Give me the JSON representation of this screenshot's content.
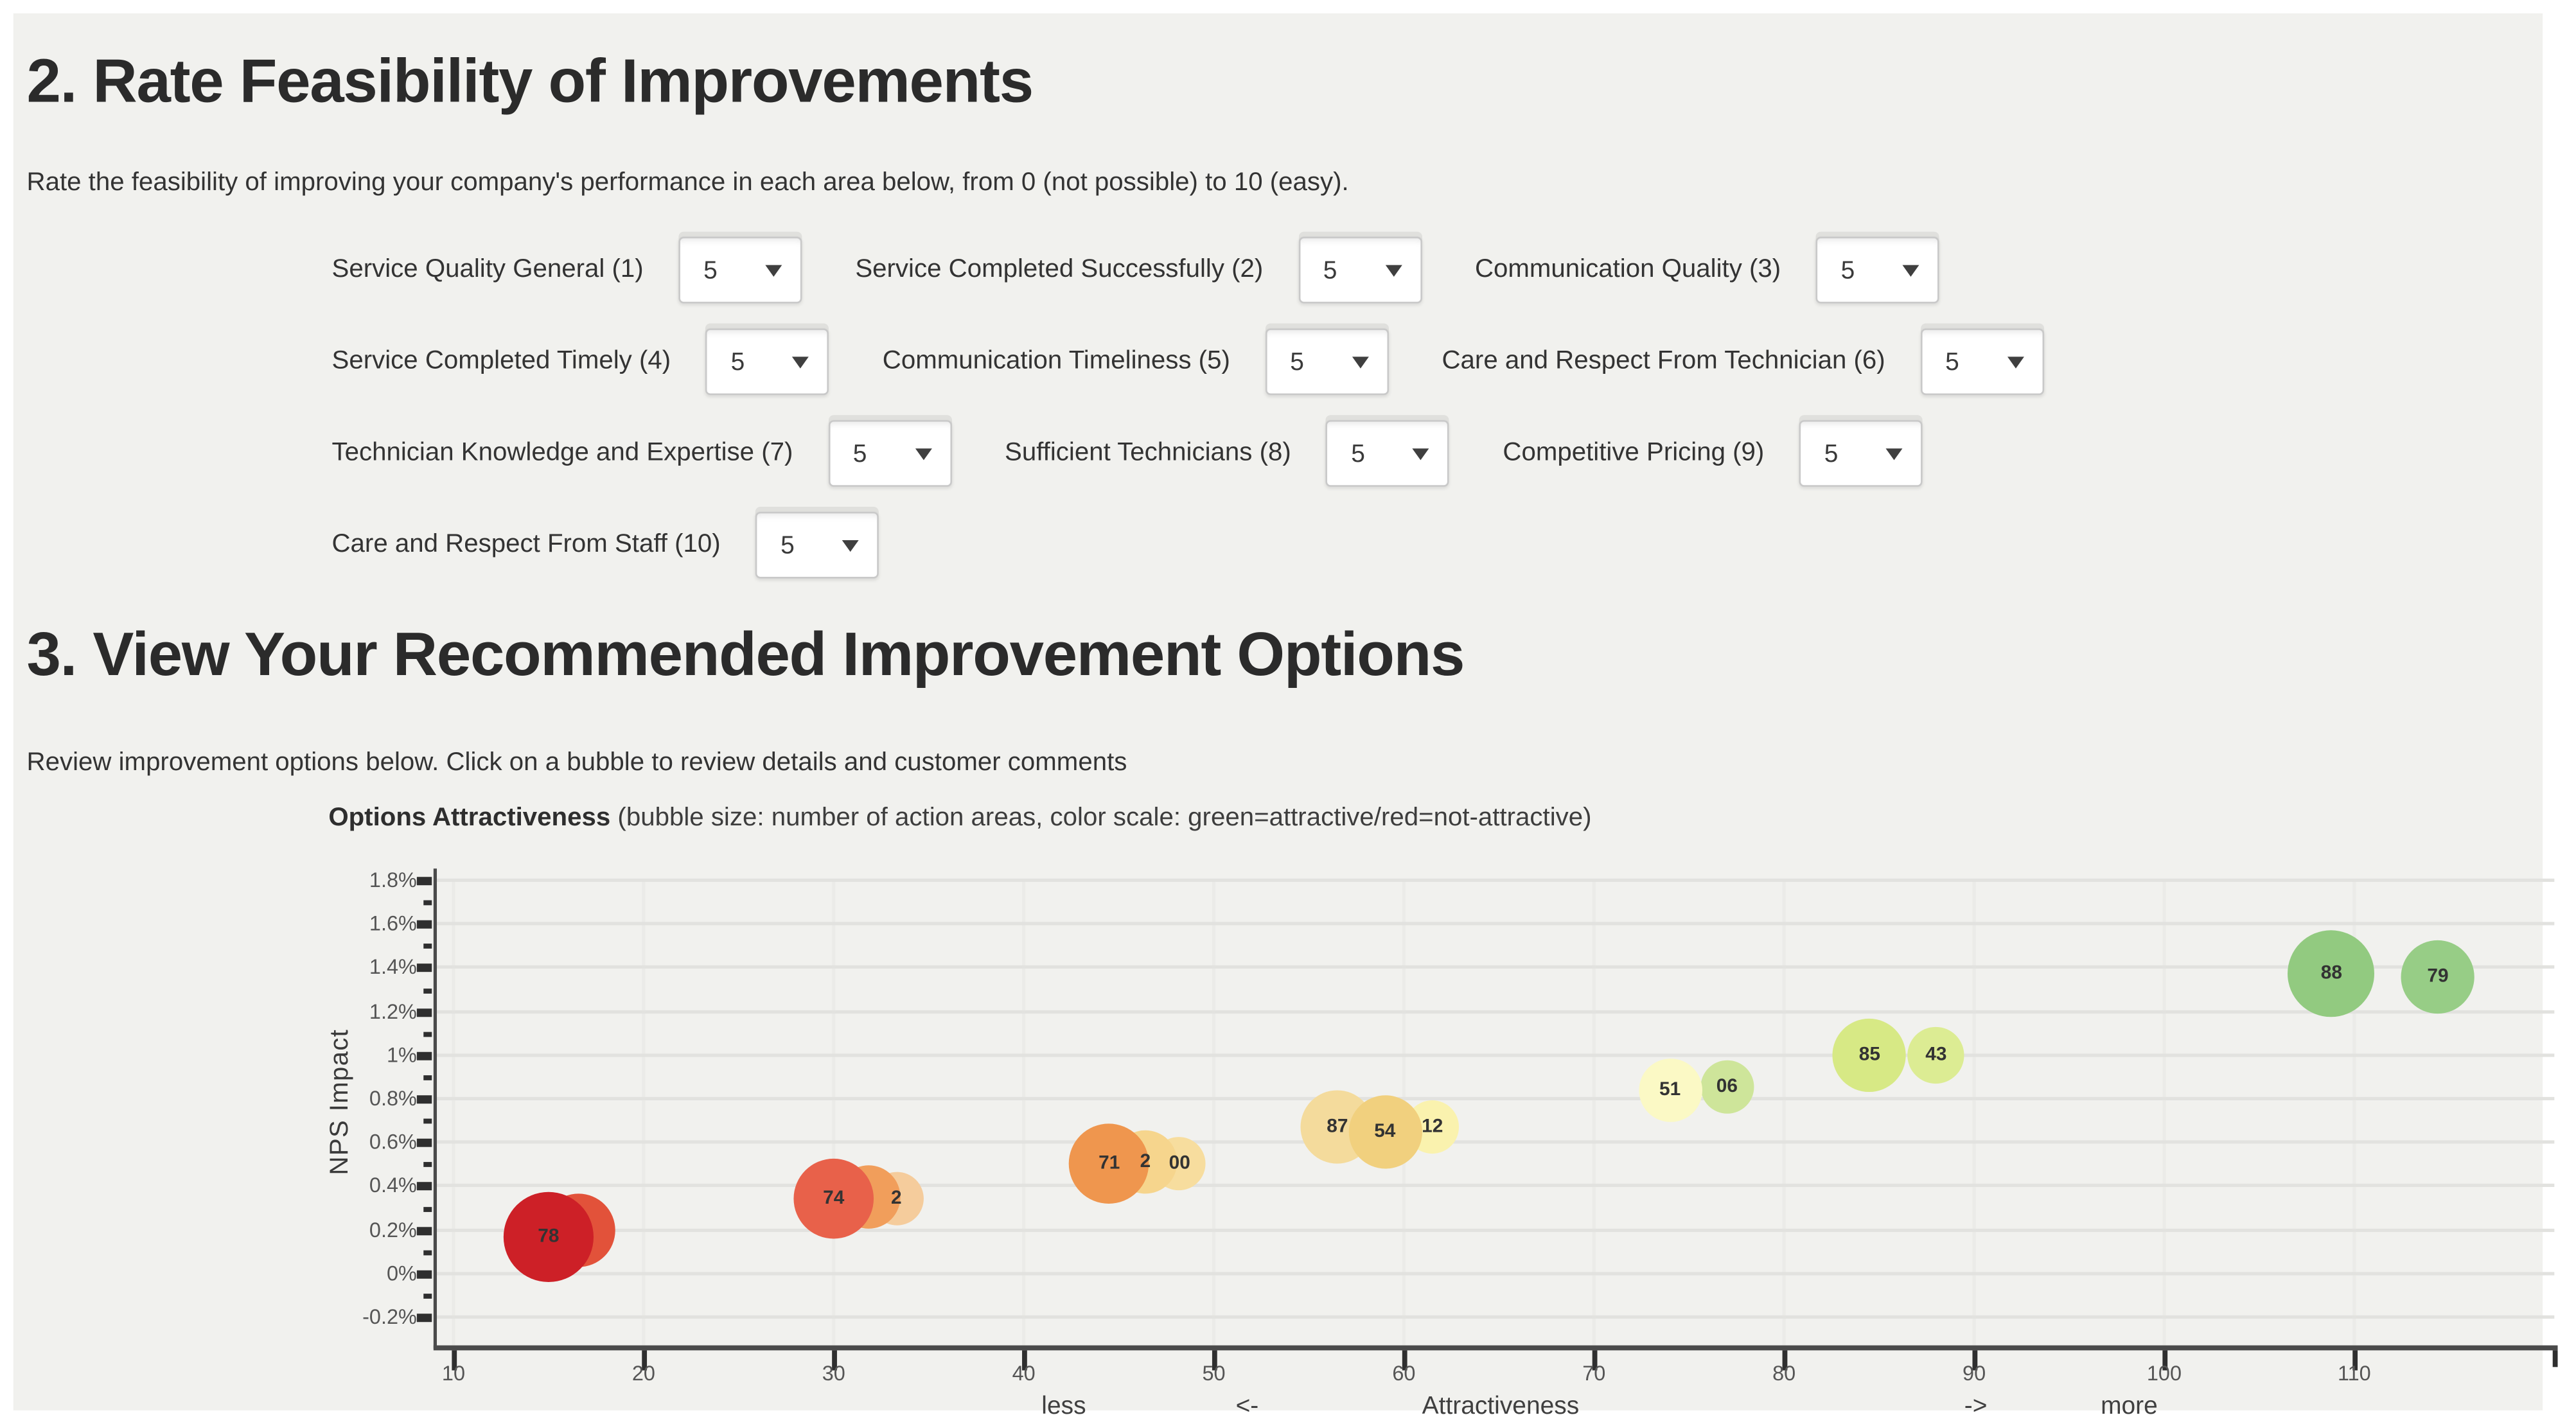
{
  "section2": {
    "heading": "2. Rate Feasibility of Improvements",
    "description": "Rate the feasibility of improving your company's performance in each area below, from 0 (not possible) to 10 (easy).",
    "rows": [
      [
        {
          "label": "Service Quality General (1)",
          "value": "5"
        },
        {
          "label": "Service Completed Successfully (2)",
          "value": "5"
        },
        {
          "label": "Communication Quality (3)",
          "value": "5"
        }
      ],
      [
        {
          "label": "Service Completed Timely (4)",
          "value": "5"
        },
        {
          "label": "Communication Timeliness (5)",
          "value": "5"
        },
        {
          "label": "Care and Respect From Technician (6)",
          "value": "5"
        }
      ],
      [
        {
          "label": "Technician Knowledge and Expertise (7)",
          "value": "5"
        },
        {
          "label": "Sufficient Technicians (8)",
          "value": "5"
        },
        {
          "label": "Competitive Pricing (9)",
          "value": "5"
        }
      ],
      [
        {
          "label": "Care and Respect From Staff (10)",
          "value": "5"
        }
      ]
    ]
  },
  "section3": {
    "heading": "3. View Your Recommended Improvement Options",
    "description": "Review improvement options below. Click on a bubble to review details and customer comments"
  },
  "chart_data": {
    "type": "scatter",
    "title": "Options Attractiveness",
    "subtitle": "(bubble size: number of action areas, color scale: green=attractive/red=not-attractive)",
    "ylabel": "NPS Impact",
    "xlabel_parts": [
      "less",
      "<-",
      "Attractiveness",
      "->",
      "more"
    ],
    "x_ticks": [
      10,
      20,
      30,
      40,
      50,
      60,
      70,
      80,
      90,
      100,
      110
    ],
    "y_ticks": [
      {
        "v": 1.8,
        "label": "1.8%"
      },
      {
        "v": 1.6,
        "label": "1.6%"
      },
      {
        "v": 1.4,
        "label": "1.4%"
      },
      {
        "v": 1.2,
        "label": "1.2%"
      },
      {
        "v": 1.0,
        "label": "1%"
      },
      {
        "v": 0.8,
        "label": "0.8%"
      },
      {
        "v": 0.6,
        "label": "0.6%"
      },
      {
        "v": 0.4,
        "label": "0.4%"
      },
      {
        "v": 0.2,
        "label": "0.2%"
      },
      {
        "v": 0.0,
        "label": "0%"
      },
      {
        "v": -0.2,
        "label": "-0.2%"
      }
    ],
    "xlim": [
      9,
      120.5
    ],
    "ylim": [
      -0.35,
      1.85
    ],
    "grid": true,
    "legend_position": "none",
    "bubbles": [
      {
        "label": "",
        "x": 16.6,
        "y": 0.2,
        "r": 22,
        "color": "#e2523a"
      },
      {
        "label": "78",
        "x": 15.0,
        "y": 0.17,
        "r": 27,
        "color": "#cd2027"
      },
      {
        "label": "2",
        "x": 33.3,
        "y": 0.34,
        "r": 16,
        "color": "#f5cc9c"
      },
      {
        "label": "",
        "x": 31.8,
        "y": 0.35,
        "r": 19,
        "color": "#f19e5b"
      },
      {
        "label": "74",
        "x": 30.0,
        "y": 0.34,
        "r": 24,
        "color": "#e8614a"
      },
      {
        "label": "00",
        "x": 48.2,
        "y": 0.5,
        "r": 16,
        "color": "#f7dd9e"
      },
      {
        "label": "2",
        "x": 46.4,
        "y": 0.51,
        "r": 19,
        "color": "#f6d58d"
      },
      {
        "label": "71",
        "x": 44.5,
        "y": 0.5,
        "r": 24,
        "color": "#ef964e"
      },
      {
        "label": "87",
        "x": 56.5,
        "y": 0.67,
        "r": 22,
        "color": "#f4db9c"
      },
      {
        "label": "12",
        "x": 61.5,
        "y": 0.67,
        "r": 16,
        "color": "#faf2ae"
      },
      {
        "label": "54",
        "x": 59.0,
        "y": 0.65,
        "r": 22,
        "color": "#f1d07e"
      },
      {
        "label": "06",
        "x": 77.0,
        "y": 0.85,
        "r": 16,
        "color": "#cee59a"
      },
      {
        "label": "51",
        "x": 74.0,
        "y": 0.84,
        "r": 19,
        "color": "#fbf9c5"
      },
      {
        "label": "43",
        "x": 88.0,
        "y": 1.0,
        "r": 17,
        "color": "#dcec93"
      },
      {
        "label": "85",
        "x": 84.5,
        "y": 1.0,
        "r": 22,
        "color": "#d7e985"
      },
      {
        "label": "79",
        "x": 114.4,
        "y": 1.36,
        "r": 22,
        "color": "#97cd86"
      },
      {
        "label": "88",
        "x": 108.8,
        "y": 1.37,
        "r": 26,
        "color": "#92ca80"
      }
    ]
  }
}
